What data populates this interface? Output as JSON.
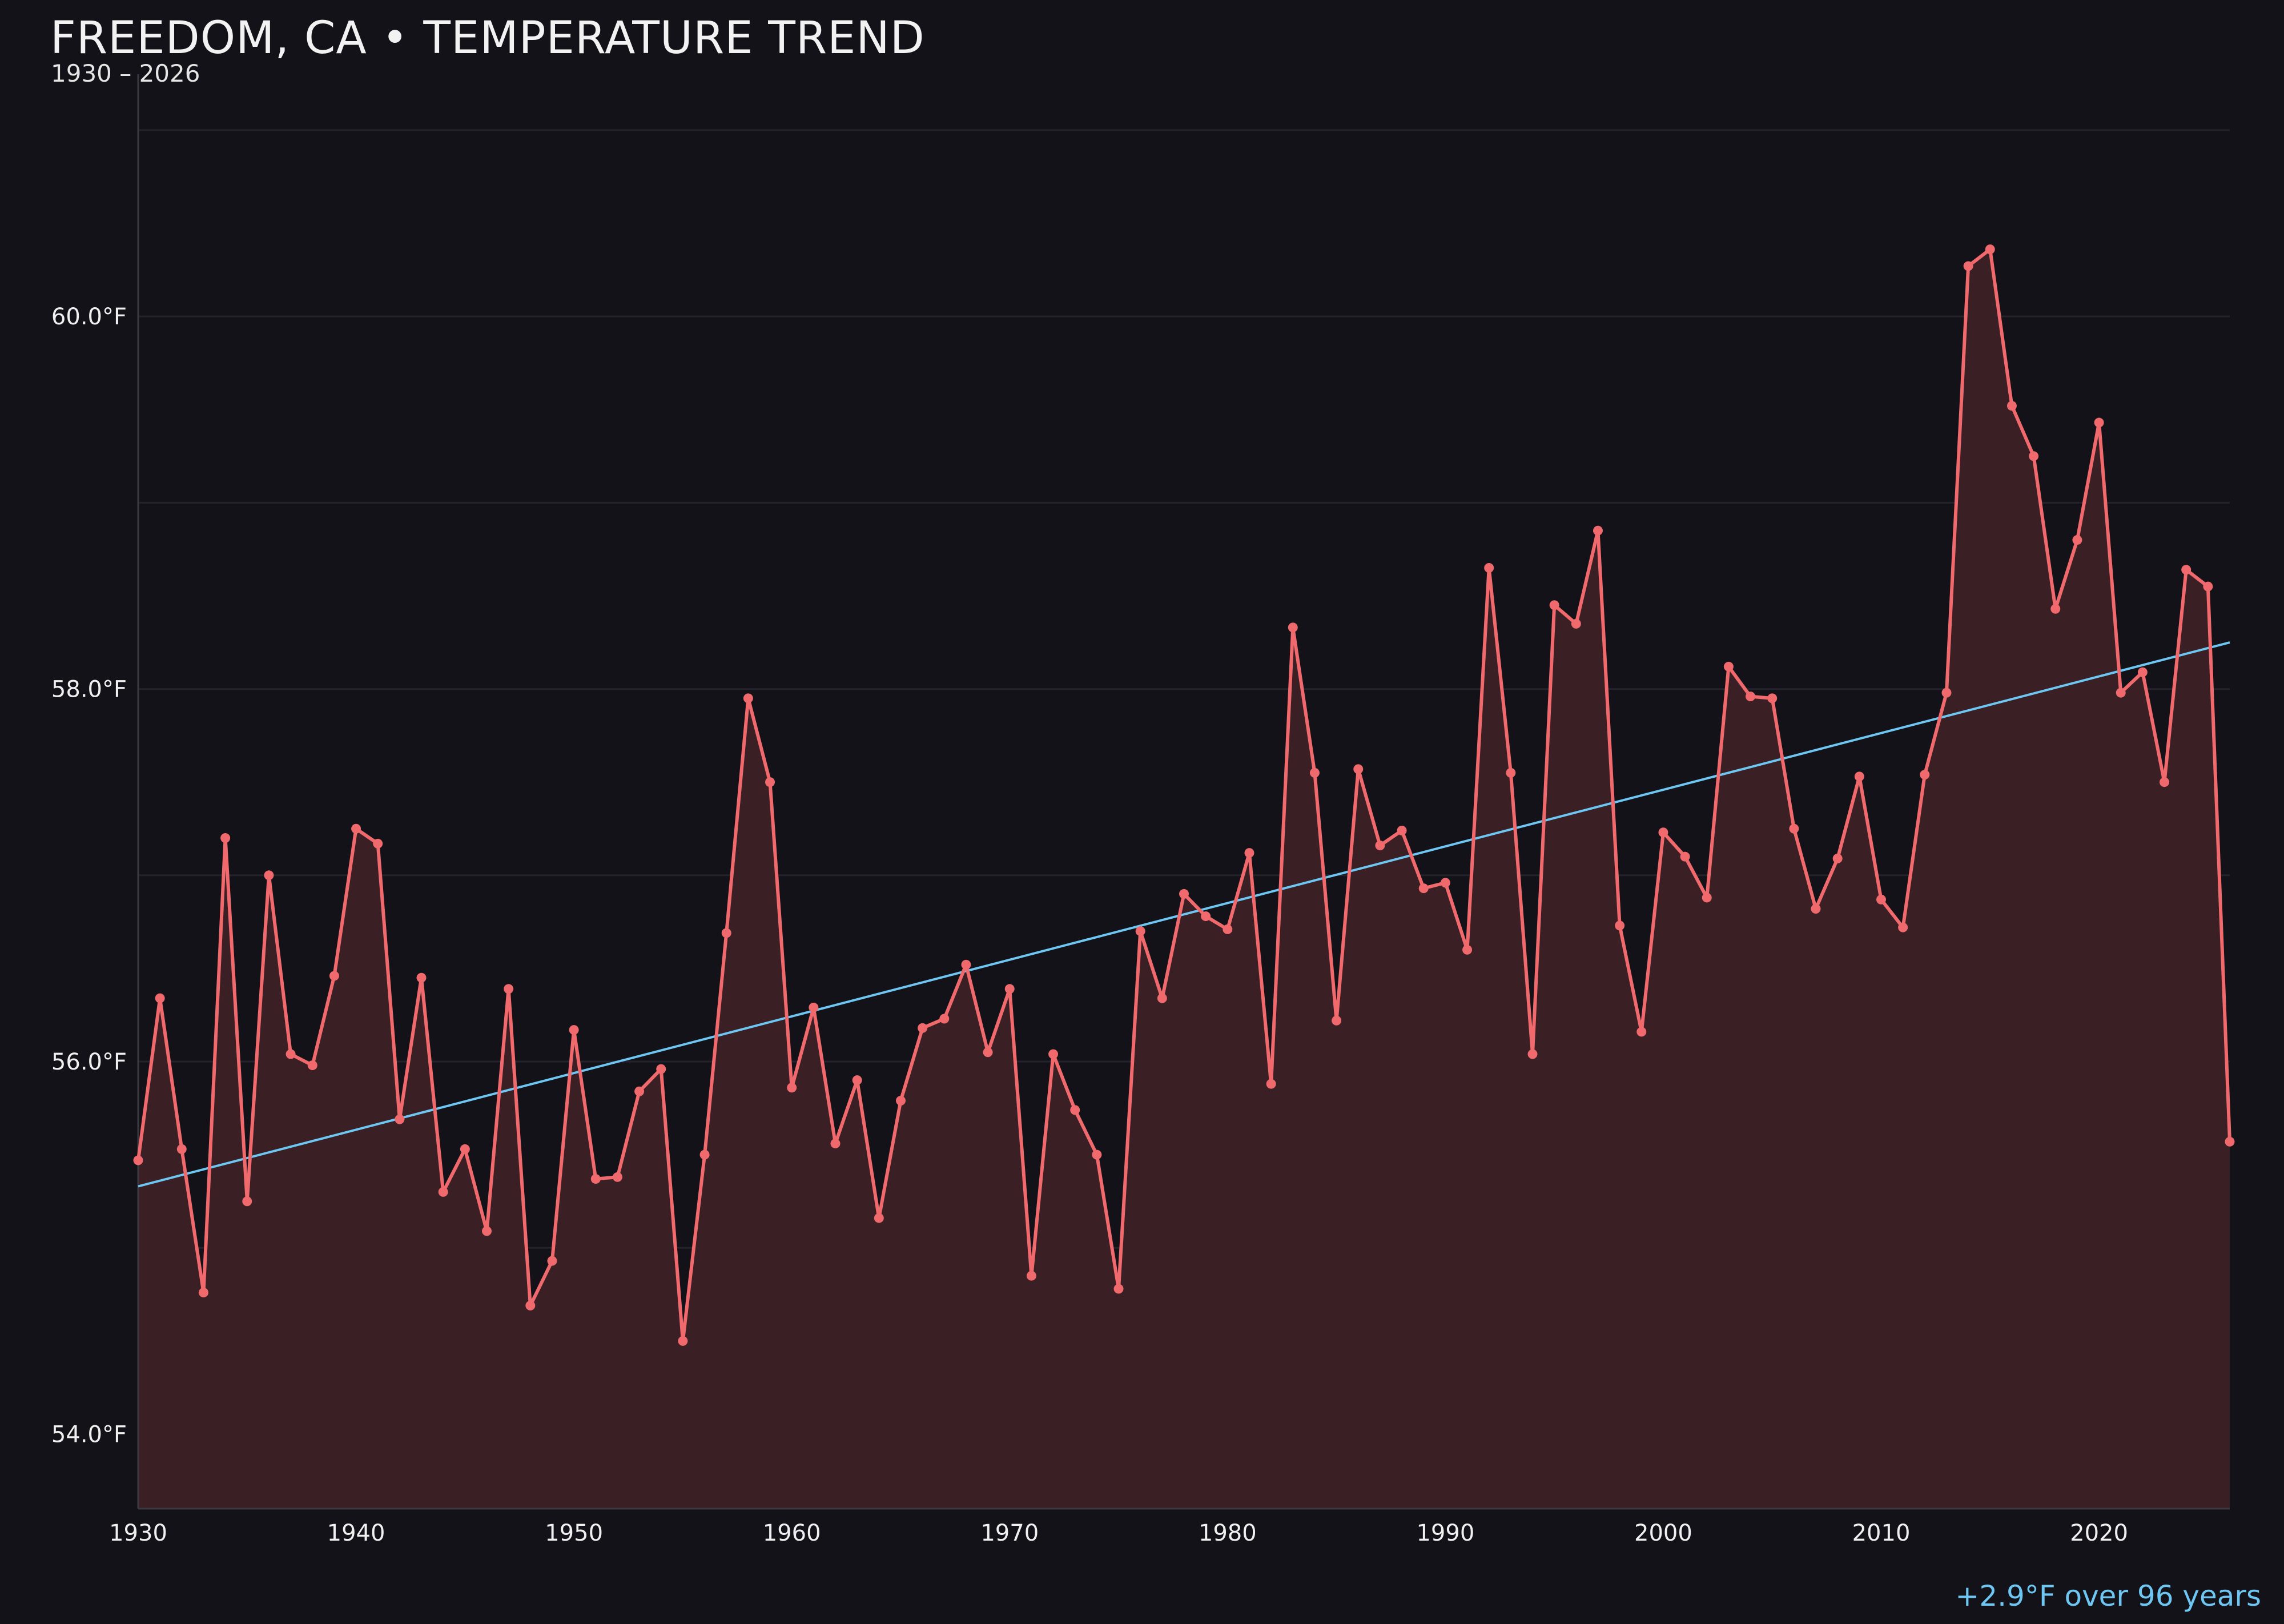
{
  "colors": {
    "background": "#131218",
    "series": "#f0696c",
    "fill": "#3a1f25",
    "trend": "#6ec7f2",
    "grid": "#24232b",
    "axis": "#3a3940",
    "text": "#f0f0f0"
  },
  "chart_data": {
    "type": "line",
    "title": "FREEDOM, CA • TEMPERATURE TREND",
    "subtitle": "1930 – 2026",
    "xlabel": "",
    "ylabel": "",
    "xlim": [
      1930,
      2026
    ],
    "ylim": [
      53.6,
      61.3
    ],
    "x_ticks": [
      1930,
      1940,
      1950,
      1960,
      1970,
      1980,
      1990,
      2000,
      2010,
      2020
    ],
    "x_tick_labels": [
      "1930",
      "1940",
      "1950",
      "1960",
      "1970",
      "1980",
      "1990",
      "2000",
      "2010",
      "2020"
    ],
    "y_ticks": [
      54,
      56,
      58,
      60
    ],
    "y_tick_labels": [
      "54.0°F",
      "56.0°F",
      "58.0°F",
      "60.0°F"
    ],
    "grid": "horizontal, faint",
    "area_fill": true,
    "series": [
      {
        "x": [
          1930,
          1931,
          1932,
          1933,
          1934,
          1935,
          1936,
          1937,
          1938,
          1939,
          1940,
          1941,
          1942,
          1943,
          1944,
          1945,
          1946,
          1947,
          1948,
          1949,
          1950,
          1951,
          1952,
          1953,
          1954,
          1955,
          1956,
          1957,
          1958,
          1959,
          1960,
          1961,
          1962,
          1963,
          1964,
          1965,
          1966,
          1967,
          1968,
          1969,
          1970,
          1971,
          1972,
          1973,
          1974,
          1975,
          1976,
          1977,
          1978,
          1979,
          1980,
          1981,
          1982,
          1983,
          1984,
          1985,
          1986,
          1987,
          1988,
          1989,
          1990,
          1991,
          1992,
          1993,
          1994,
          1995,
          1996,
          1997,
          1998,
          1999,
          2000,
          2001,
          2002,
          2003,
          2004,
          2005,
          2006,
          2007,
          2008,
          2009,
          2010,
          2011,
          2012,
          2013,
          2014,
          2015,
          2016,
          2017,
          2018,
          2019,
          2020,
          2021,
          2022,
          2023,
          2024,
          2025,
          2026
        ],
        "values": [
          55.47,
          56.34,
          55.53,
          54.76,
          57.2,
          55.25,
          57.0,
          56.04,
          55.98,
          56.46,
          57.25,
          57.17,
          55.69,
          56.45,
          55.3,
          55.53,
          55.09,
          56.39,
          54.69,
          54.93,
          56.17,
          55.37,
          55.38,
          55.84,
          55.96,
          54.5,
          55.5,
          56.69,
          57.95,
          57.5,
          55.86,
          56.29,
          55.56,
          55.9,
          55.16,
          55.79,
          56.18,
          56.23,
          56.52,
          56.05,
          56.39,
          54.85,
          56.04,
          55.74,
          55.5,
          54.78,
          56.7,
          56.34,
          56.9,
          56.78,
          56.71,
          57.12,
          55.88,
          58.33,
          57.55,
          56.22,
          57.57,
          57.16,
          57.24,
          56.93,
          56.96,
          56.6,
          58.65,
          57.55,
          56.04,
          58.45,
          58.35,
          58.85,
          56.73,
          56.16,
          57.23,
          57.1,
          56.88,
          58.12,
          57.96,
          57.95,
          57.25,
          56.82,
          57.09,
          57.53,
          56.87,
          56.72,
          57.54,
          57.98,
          60.27,
          60.36,
          59.52,
          59.25,
          58.43,
          58.8,
          59.43,
          57.98,
          58.09,
          57.5,
          58.64,
          58.55,
          55.57
        ]
      }
    ],
    "trend_line": {
      "x": [
        1930,
        2026
      ],
      "y": [
        55.33,
        58.25
      ]
    },
    "annotation": "+2.9°F over 96 years"
  }
}
